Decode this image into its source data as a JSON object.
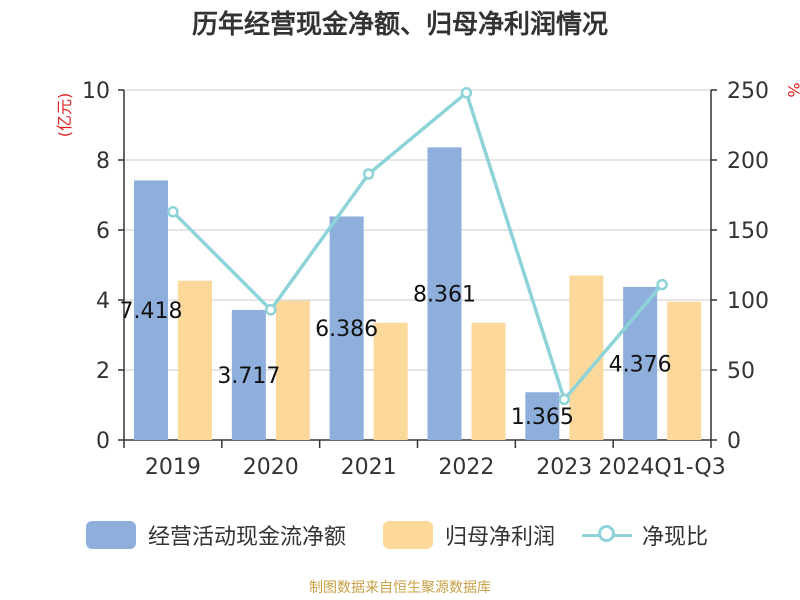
{
  "chart_data": {
    "type": "bar",
    "title": "历年经营现金净额、归母净利润情况",
    "categories": [
      "2019",
      "2020",
      "2021",
      "2022",
      "2023",
      "2024Q1-Q3"
    ],
    "y_left": {
      "unit": "(亿元)",
      "ylim": [
        0,
        10
      ],
      "ticks": [
        0,
        2,
        4,
        6,
        8,
        10
      ]
    },
    "y_right": {
      "unit": "%",
      "ylim": [
        0,
        250
      ],
      "ticks": [
        0,
        50,
        100,
        150,
        200,
        250
      ]
    },
    "series": [
      {
        "name": "经营活动现金流净额",
        "axis": "left",
        "kind": "bar",
        "color": "#8eaedb",
        "values": [
          7.418,
          3.717,
          6.386,
          8.361,
          1.365,
          4.376
        ],
        "labels": [
          "7.418",
          "3.717",
          "6.386",
          "8.361",
          "1.365",
          "4.376"
        ]
      },
      {
        "name": "归母净利润",
        "axis": "left",
        "kind": "bar",
        "color": "#fdd89b",
        "values": [
          4.55,
          3.98,
          3.35,
          3.35,
          4.7,
          3.95
        ]
      },
      {
        "name": "净现比",
        "axis": "right",
        "kind": "line",
        "color": "#8dd3d8",
        "values": [
          163,
          93,
          190,
          248,
          29,
          111
        ]
      }
    ],
    "grid": true,
    "legend_position": "bottom"
  },
  "source": "制图数据来自恒生聚源数据库"
}
